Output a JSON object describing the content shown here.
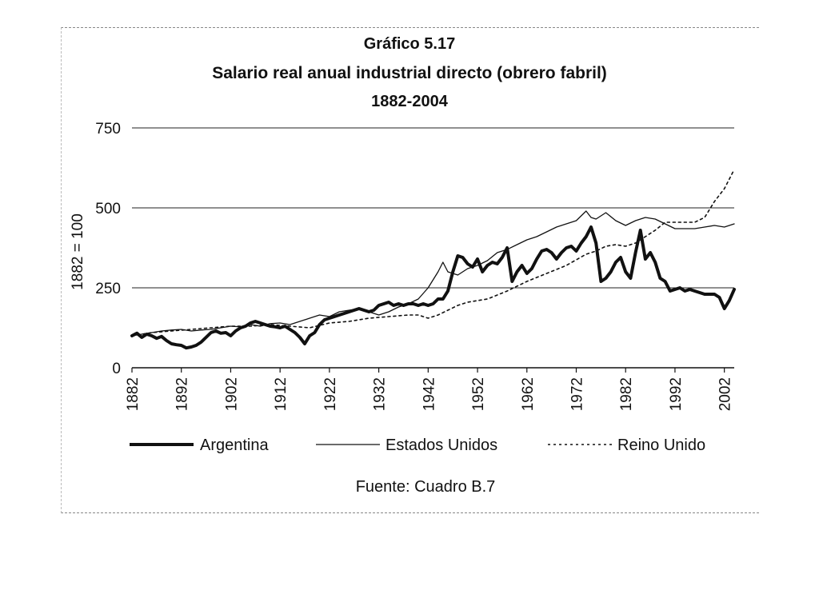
{
  "chart_data": {
    "type": "line",
    "title": "Gráfico 5.17",
    "subtitle": "Salario real anual industrial directo (obrero fabril)",
    "period": "1882-2004",
    "ylabel": "1882 = 100",
    "xlabel": "",
    "source": "Fuente: Cuadro B.7",
    "ylim": [
      0,
      750
    ],
    "xlim": [
      1882,
      2004
    ],
    "yticks": [
      0,
      250,
      500,
      750
    ],
    "xticks": [
      1882,
      1892,
      1902,
      1912,
      1922,
      1932,
      1942,
      1952,
      1962,
      1972,
      1982,
      1992,
      2002
    ],
    "legend_position": "bottom",
    "series": [
      {
        "name": "Argentina",
        "style": "thick-solid",
        "color": "#111111",
        "points": [
          [
            1882,
            100
          ],
          [
            1883,
            108
          ],
          [
            1884,
            95
          ],
          [
            1885,
            105
          ],
          [
            1886,
            100
          ],
          [
            1887,
            92
          ],
          [
            1888,
            98
          ],
          [
            1889,
            85
          ],
          [
            1890,
            75
          ],
          [
            1891,
            72
          ],
          [
            1892,
            70
          ],
          [
            1893,
            62
          ],
          [
            1894,
            65
          ],
          [
            1895,
            70
          ],
          [
            1896,
            80
          ],
          [
            1897,
            95
          ],
          [
            1898,
            110
          ],
          [
            1899,
            115
          ],
          [
            1900,
            108
          ],
          [
            1901,
            110
          ],
          [
            1902,
            100
          ],
          [
            1903,
            115
          ],
          [
            1904,
            125
          ],
          [
            1905,
            130
          ],
          [
            1906,
            140
          ],
          [
            1907,
            145
          ],
          [
            1908,
            140
          ],
          [
            1909,
            135
          ],
          [
            1910,
            130
          ],
          [
            1911,
            128
          ],
          [
            1912,
            125
          ],
          [
            1913,
            130
          ],
          [
            1914,
            120
          ],
          [
            1915,
            110
          ],
          [
            1916,
            95
          ],
          [
            1917,
            75
          ],
          [
            1918,
            100
          ],
          [
            1919,
            110
          ],
          [
            1920,
            135
          ],
          [
            1921,
            150
          ],
          [
            1922,
            155
          ],
          [
            1923,
            160
          ],
          [
            1924,
            165
          ],
          [
            1925,
            170
          ],
          [
            1926,
            175
          ],
          [
            1927,
            180
          ],
          [
            1928,
            185
          ],
          [
            1929,
            180
          ],
          [
            1930,
            175
          ],
          [
            1931,
            180
          ],
          [
            1932,
            195
          ],
          [
            1933,
            200
          ],
          [
            1934,
            205
          ],
          [
            1935,
            195
          ],
          [
            1936,
            200
          ],
          [
            1937,
            195
          ],
          [
            1938,
            200
          ],
          [
            1939,
            200
          ],
          [
            1940,
            195
          ],
          [
            1941,
            200
          ],
          [
            1942,
            195
          ],
          [
            1943,
            200
          ],
          [
            1944,
            215
          ],
          [
            1945,
            215
          ],
          [
            1946,
            240
          ],
          [
            1947,
            300
          ],
          [
            1948,
            350
          ],
          [
            1949,
            345
          ],
          [
            1950,
            325
          ],
          [
            1951,
            315
          ],
          [
            1952,
            340
          ],
          [
            1953,
            300
          ],
          [
            1954,
            320
          ],
          [
            1955,
            330
          ],
          [
            1956,
            325
          ],
          [
            1957,
            345
          ],
          [
            1958,
            375
          ],
          [
            1959,
            270
          ],
          [
            1960,
            300
          ],
          [
            1961,
            320
          ],
          [
            1962,
            295
          ],
          [
            1963,
            310
          ],
          [
            1964,
            340
          ],
          [
            1965,
            365
          ],
          [
            1966,
            370
          ],
          [
            1967,
            360
          ],
          [
            1968,
            340
          ],
          [
            1969,
            360
          ],
          [
            1970,
            375
          ],
          [
            1971,
            380
          ],
          [
            1972,
            365
          ],
          [
            1973,
            390
          ],
          [
            1974,
            410
          ],
          [
            1975,
            440
          ],
          [
            1976,
            390
          ],
          [
            1977,
            270
          ],
          [
            1978,
            280
          ],
          [
            1979,
            300
          ],
          [
            1980,
            330
          ],
          [
            1981,
            345
          ],
          [
            1982,
            300
          ],
          [
            1983,
            280
          ],
          [
            1984,
            360
          ],
          [
            1985,
            430
          ],
          [
            1986,
            340
          ],
          [
            1987,
            360
          ],
          [
            1988,
            330
          ],
          [
            1989,
            280
          ],
          [
            1990,
            270
          ],
          [
            1991,
            240
          ],
          [
            1992,
            245
          ],
          [
            1993,
            250
          ],
          [
            1994,
            240
          ],
          [
            1995,
            245
          ],
          [
            1996,
            240
          ],
          [
            1997,
            235
          ],
          [
            1998,
            230
          ],
          [
            1999,
            230
          ],
          [
            2000,
            230
          ],
          [
            2001,
            220
          ],
          [
            2002,
            185
          ],
          [
            2003,
            210
          ],
          [
            2004,
            245
          ]
        ]
      },
      {
        "name": "Estados Unidos",
        "style": "thin-solid",
        "color": "#111111",
        "points": [
          [
            1882,
            100
          ],
          [
            1884,
            105
          ],
          [
            1886,
            110
          ],
          [
            1888,
            115
          ],
          [
            1890,
            118
          ],
          [
            1892,
            120
          ],
          [
            1894,
            115
          ],
          [
            1896,
            118
          ],
          [
            1898,
            120
          ],
          [
            1900,
            125
          ],
          [
            1902,
            130
          ],
          [
            1904,
            128
          ],
          [
            1906,
            135
          ],
          [
            1908,
            130
          ],
          [
            1910,
            138
          ],
          [
            1912,
            140
          ],
          [
            1914,
            135
          ],
          [
            1916,
            145
          ],
          [
            1918,
            155
          ],
          [
            1920,
            165
          ],
          [
            1922,
            160
          ],
          [
            1924,
            175
          ],
          [
            1926,
            180
          ],
          [
            1928,
            185
          ],
          [
            1930,
            175
          ],
          [
            1932,
            165
          ],
          [
            1934,
            175
          ],
          [
            1936,
            190
          ],
          [
            1938,
            200
          ],
          [
            1940,
            215
          ],
          [
            1942,
            250
          ],
          [
            1944,
            300
          ],
          [
            1945,
            330
          ],
          [
            1946,
            300
          ],
          [
            1948,
            290
          ],
          [
            1950,
            310
          ],
          [
            1952,
            320
          ],
          [
            1954,
            335
          ],
          [
            1956,
            360
          ],
          [
            1958,
            370
          ],
          [
            1960,
            385
          ],
          [
            1962,
            400
          ],
          [
            1964,
            410
          ],
          [
            1966,
            425
          ],
          [
            1968,
            440
          ],
          [
            1970,
            450
          ],
          [
            1972,
            460
          ],
          [
            1974,
            490
          ],
          [
            1975,
            470
          ],
          [
            1976,
            465
          ],
          [
            1978,
            485
          ],
          [
            1980,
            460
          ],
          [
            1982,
            445
          ],
          [
            1984,
            460
          ],
          [
            1986,
            470
          ],
          [
            1988,
            465
          ],
          [
            1990,
            450
          ],
          [
            1992,
            435
          ],
          [
            1994,
            435
          ],
          [
            1996,
            435
          ],
          [
            1998,
            440
          ],
          [
            2000,
            445
          ],
          [
            2002,
            440
          ],
          [
            2004,
            450
          ]
        ]
      },
      {
        "name": "Reino Unido",
        "style": "dotted",
        "color": "#111111",
        "points": [
          [
            1882,
            100
          ],
          [
            1886,
            110
          ],
          [
            1890,
            115
          ],
          [
            1894,
            120
          ],
          [
            1898,
            125
          ],
          [
            1902,
            130
          ],
          [
            1906,
            130
          ],
          [
            1910,
            135
          ],
          [
            1914,
            130
          ],
          [
            1918,
            125
          ],
          [
            1922,
            140
          ],
          [
            1926,
            145
          ],
          [
            1930,
            155
          ],
          [
            1934,
            160
          ],
          [
            1938,
            165
          ],
          [
            1940,
            165
          ],
          [
            1942,
            155
          ],
          [
            1944,
            165
          ],
          [
            1946,
            180
          ],
          [
            1948,
            195
          ],
          [
            1950,
            205
          ],
          [
            1954,
            215
          ],
          [
            1958,
            240
          ],
          [
            1962,
            270
          ],
          [
            1966,
            295
          ],
          [
            1970,
            320
          ],
          [
            1974,
            355
          ],
          [
            1976,
            365
          ],
          [
            1978,
            380
          ],
          [
            1980,
            385
          ],
          [
            1982,
            380
          ],
          [
            1984,
            390
          ],
          [
            1986,
            410
          ],
          [
            1988,
            430
          ],
          [
            1990,
            455
          ],
          [
            1992,
            455
          ],
          [
            1994,
            455
          ],
          [
            1996,
            455
          ],
          [
            1998,
            470
          ],
          [
            2000,
            520
          ],
          [
            2002,
            560
          ],
          [
            2004,
            620
          ]
        ]
      }
    ]
  }
}
